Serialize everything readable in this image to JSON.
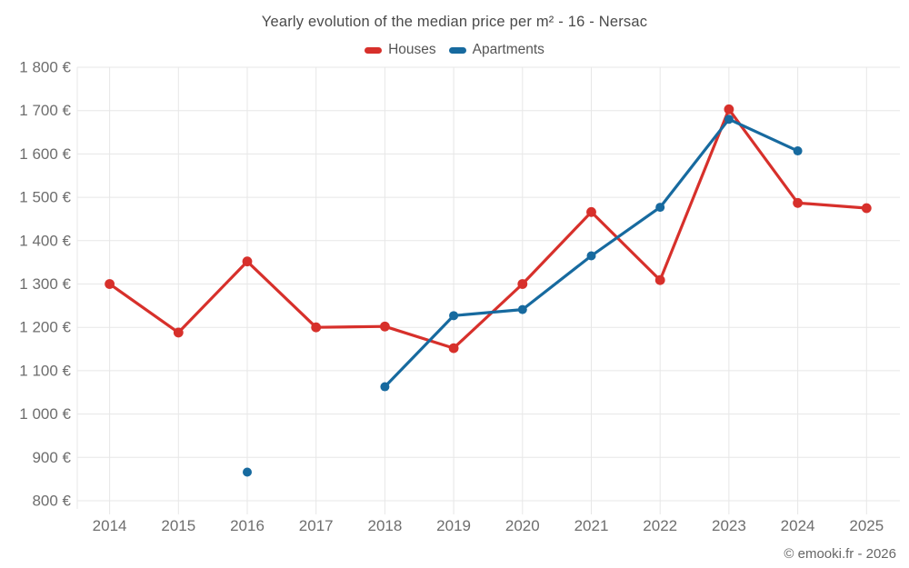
{
  "page": {
    "title": "Yearly evolution of the median price per m² - 16 - Nersac",
    "footer": "© emooki.fr - 2026"
  },
  "legend": {
    "items": [
      {
        "label": "Houses",
        "color": "#d7302b"
      },
      {
        "label": "Apartments",
        "color": "#176a9f"
      }
    ]
  },
  "chart_data": {
    "type": "line",
    "title": "Yearly evolution of the median price per m² - 16 - Nersac",
    "categories": [
      "2014",
      "2015",
      "2016",
      "2017",
      "2018",
      "2019",
      "2020",
      "2021",
      "2022",
      "2023",
      "2024",
      "2025"
    ],
    "series": [
      {
        "name": "Houses",
        "color": "#d7302b",
        "point_radius": 5.4,
        "values": [
          1300,
          1188,
          1352,
          1200,
          1202,
          1152,
          1300,
          1466,
          1309,
          1703,
          1487,
          1475
        ]
      },
      {
        "name": "Apartments",
        "color": "#176a9f",
        "point_radius": 5.0,
        "values": [
          null,
          null,
          866,
          null,
          1063,
          1227,
          1241,
          1365,
          1477,
          1680,
          1607,
          null
        ]
      }
    ],
    "ylim": [
      800,
      1800
    ],
    "ytick_step": 100,
    "ytick_suffix": " €",
    "grid": true,
    "legend_position": "top",
    "xlabel": "",
    "ylabel": ""
  },
  "colors": {
    "background": "#ffffff",
    "grid": "#e7e7e7",
    "axis_text": "#6e6e6e",
    "title_text": "#4a4a4a",
    "legend_text": "#555555",
    "footer_text": "#666666"
  }
}
